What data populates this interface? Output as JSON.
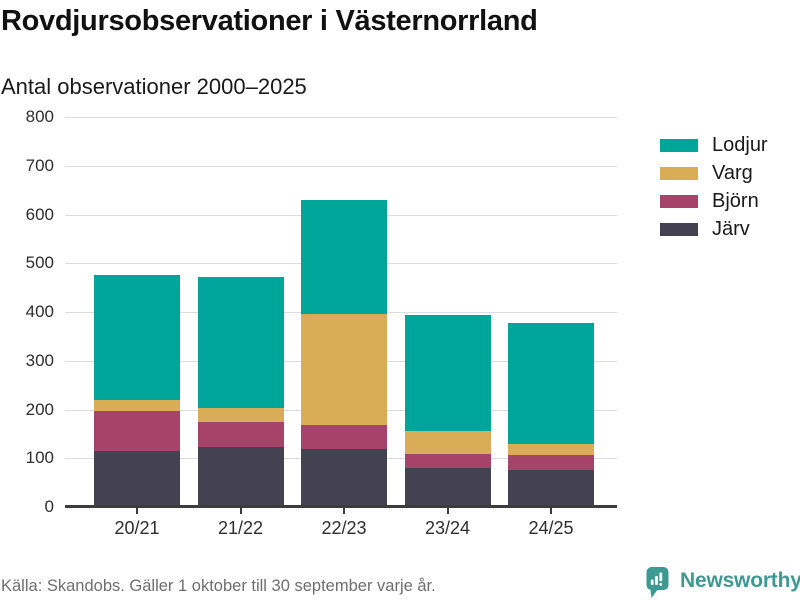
{
  "header": {
    "title": "Rovdjursobservationer i Västernorrland",
    "subtitle": "Antal observationer 2000–2025"
  },
  "chart_data": {
    "type": "bar",
    "stacked": true,
    "title": "Rovdjursobservationer i Västernorrland",
    "subtitle": "Antal observationer 2000–2025",
    "categories": [
      "20/21",
      "21/22",
      "22/23",
      "23/24",
      "24/25"
    ],
    "series": [
      {
        "name": "Järv",
        "color": "#444150",
        "values": [
          114,
          124,
          118,
          81,
          75
        ]
      },
      {
        "name": "Björn",
        "color": "#a64369",
        "values": [
          83,
          50,
          51,
          28,
          32
        ]
      },
      {
        "name": "Varg",
        "color": "#d9ad55",
        "values": [
          22,
          30,
          226,
          47,
          23
        ]
      },
      {
        "name": "Lodjur",
        "color": "#00a59a",
        "values": [
          256,
          268,
          234,
          238,
          248
        ]
      }
    ],
    "totals": [
      475,
      472,
      629,
      394,
      378
    ],
    "legend": [
      "Lodjur",
      "Varg",
      "Björn",
      "Järv"
    ],
    "legend_position": "right",
    "ylim": [
      0,
      800
    ],
    "yticks": [
      0,
      100,
      200,
      300,
      400,
      500,
      600,
      700,
      800
    ],
    "grid": true
  },
  "footer": {
    "source": "Källa: Skandobs. Gäller 1 oktober till 30 september varje år.",
    "brand": "Newsworthy"
  },
  "colors": {
    "brand_teal": "#3d9a93",
    "gridline": "#dcdcdc",
    "axis": "#3c3c3c",
    "muted_text": "#6e6e6e"
  }
}
